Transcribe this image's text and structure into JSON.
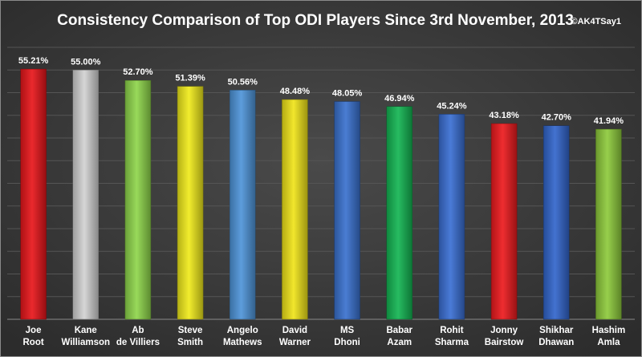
{
  "chart_data": {
    "type": "bar",
    "title": "Consistency Comparison of Top ODI Players Since 3rd November, 2013",
    "credit": "©AK4TSay1",
    "categories": [
      [
        "Joe",
        "Root"
      ],
      [
        "Kane",
        "Williamson"
      ],
      [
        "Ab",
        "de Villiers"
      ],
      [
        "Steve",
        "Smith"
      ],
      [
        "Angelo",
        "Mathews"
      ],
      [
        "David",
        "Warner"
      ],
      [
        "MS",
        "Dhoni"
      ],
      [
        "Babar",
        "Azam"
      ],
      [
        "Rohit",
        "Sharma"
      ],
      [
        "Jonny",
        "Bairstow"
      ],
      [
        "Shikhar",
        "Dhawan"
      ],
      [
        "Hashim",
        "Amla"
      ]
    ],
    "values": [
      55.21,
      55.0,
      52.7,
      51.39,
      50.56,
      48.48,
      48.05,
      46.94,
      45.24,
      43.18,
      42.7,
      41.94
    ],
    "value_labels": [
      "55.21%",
      "55.00%",
      "52.70%",
      "51.39%",
      "50.56%",
      "48.48%",
      "48.05%",
      "46.94%",
      "45.24%",
      "43.18%",
      "42.70%",
      "41.94%"
    ],
    "bar_colors": [
      "#e8161b",
      "#d2d2d2",
      "#8fd64c",
      "#f0ea1c",
      "#4f95d9",
      "#f0e41a",
      "#3a72cf",
      "#14b553",
      "#3a6fd3",
      "#ed1b1e",
      "#3366cc",
      "#8ecb3c"
    ],
    "ylim": [
      0,
      60
    ],
    "grid": true,
    "legend": "none"
  }
}
